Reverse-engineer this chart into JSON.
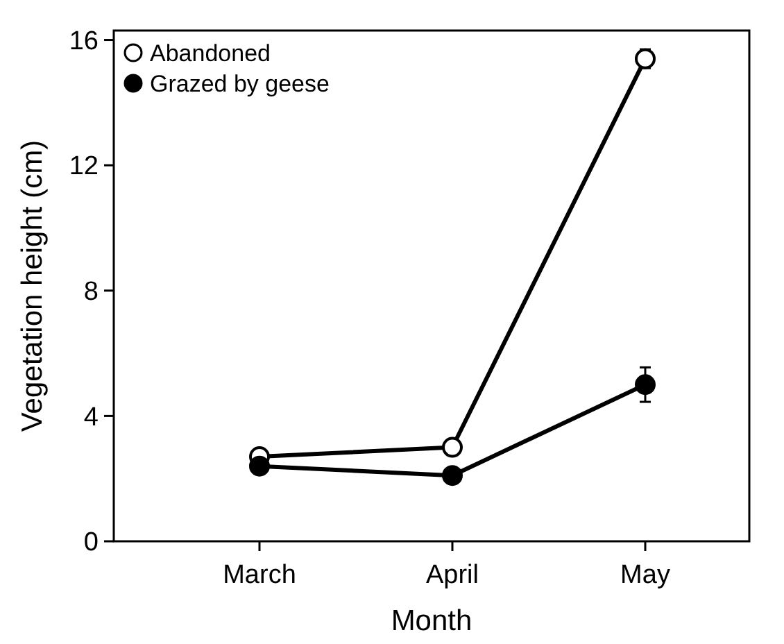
{
  "chart_data": {
    "type": "line",
    "xlabel": "Month",
    "ylabel": "Vegetation height (cm)",
    "categories": [
      "March",
      "April",
      "May"
    ],
    "series": [
      {
        "name": "Abandoned",
        "color": "#ffffff",
        "values": [
          2.7,
          3.0,
          15.4
        ],
        "errors": [
          null,
          null,
          0.3
        ]
      },
      {
        "name": "Grazed by geese",
        "color": "#000000",
        "values": [
          2.4,
          2.1,
          5.0
        ],
        "errors": [
          null,
          null,
          0.55
        ]
      }
    ],
    "ylim": [
      0,
      16.3
    ],
    "yticks": [
      0,
      4,
      8,
      12,
      16
    ],
    "grid": false,
    "legend": "top left",
    "marker": "circle",
    "line_style": "solid"
  }
}
